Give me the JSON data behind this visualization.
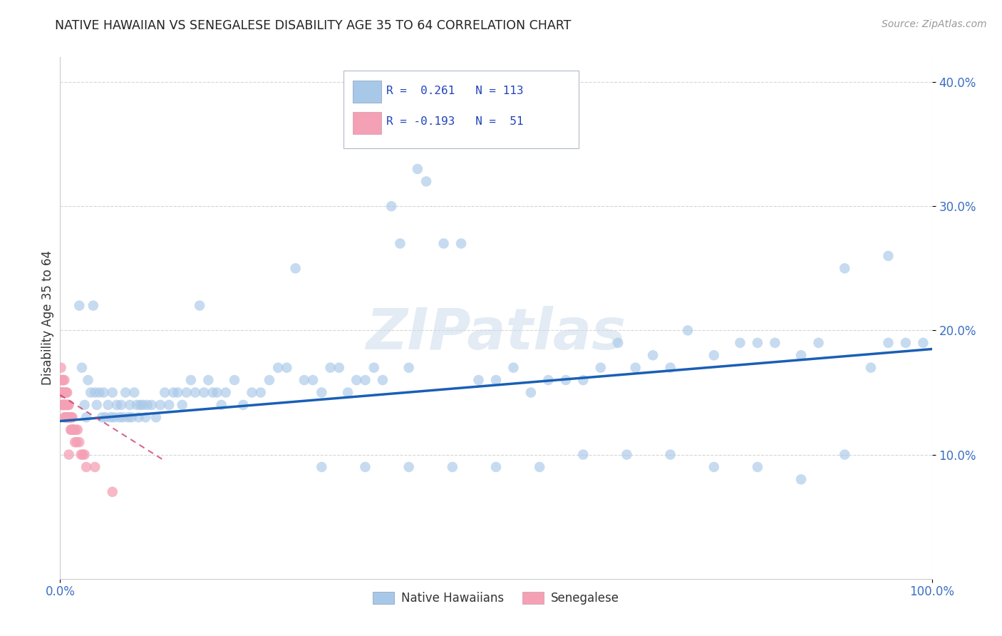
{
  "title": "NATIVE HAWAIIAN VS SENEGALESE DISABILITY AGE 35 TO 64 CORRELATION CHART",
  "source": "Source: ZipAtlas.com",
  "ylabel": "Disability Age 35 to 64",
  "xlim": [
    0,
    1.0
  ],
  "ylim": [
    0,
    0.42
  ],
  "blue_color": "#a8c8e8",
  "pink_color": "#f4a0b5",
  "line_blue": "#1a5fb4",
  "line_pink": "#cc3366",
  "background_color": "#ffffff",
  "grid_color": "#cccccc",
  "watermark": "ZIPatlas",
  "blue_line_x": [
    0.0,
    1.0
  ],
  "blue_line_y": [
    0.127,
    0.185
  ],
  "pink_line_x": [
    0.0,
    0.12
  ],
  "pink_line_y": [
    0.148,
    0.095
  ],
  "nh_x": [
    0.022,
    0.025,
    0.028,
    0.03,
    0.032,
    0.035,
    0.038,
    0.04,
    0.042,
    0.045,
    0.048,
    0.05,
    0.052,
    0.055,
    0.058,
    0.06,
    0.062,
    0.065,
    0.068,
    0.07,
    0.072,
    0.075,
    0.078,
    0.08,
    0.082,
    0.085,
    0.088,
    0.09,
    0.092,
    0.095,
    0.098,
    0.1,
    0.105,
    0.11,
    0.115,
    0.12,
    0.125,
    0.13,
    0.135,
    0.14,
    0.145,
    0.15,
    0.155,
    0.16,
    0.165,
    0.17,
    0.175,
    0.18,
    0.185,
    0.19,
    0.2,
    0.21,
    0.22,
    0.23,
    0.24,
    0.25,
    0.26,
    0.27,
    0.28,
    0.29,
    0.3,
    0.31,
    0.32,
    0.33,
    0.34,
    0.35,
    0.36,
    0.37,
    0.38,
    0.39,
    0.4,
    0.41,
    0.42,
    0.44,
    0.46,
    0.48,
    0.5,
    0.52,
    0.54,
    0.56,
    0.58,
    0.6,
    0.62,
    0.64,
    0.66,
    0.68,
    0.7,
    0.72,
    0.75,
    0.78,
    0.8,
    0.82,
    0.85,
    0.87,
    0.9,
    0.93,
    0.95,
    0.3,
    0.35,
    0.4,
    0.45,
    0.5,
    0.55,
    0.6,
    0.65,
    0.7,
    0.75,
    0.8,
    0.85,
    0.9,
    0.95,
    0.97,
    0.99
  ],
  "nh_y": [
    0.22,
    0.17,
    0.14,
    0.13,
    0.16,
    0.15,
    0.22,
    0.15,
    0.14,
    0.15,
    0.13,
    0.15,
    0.13,
    0.14,
    0.13,
    0.15,
    0.13,
    0.14,
    0.13,
    0.14,
    0.13,
    0.15,
    0.13,
    0.14,
    0.13,
    0.15,
    0.14,
    0.13,
    0.14,
    0.14,
    0.13,
    0.14,
    0.14,
    0.13,
    0.14,
    0.15,
    0.14,
    0.15,
    0.15,
    0.14,
    0.15,
    0.16,
    0.15,
    0.22,
    0.15,
    0.16,
    0.15,
    0.15,
    0.14,
    0.15,
    0.16,
    0.14,
    0.15,
    0.15,
    0.16,
    0.17,
    0.17,
    0.25,
    0.16,
    0.16,
    0.15,
    0.17,
    0.17,
    0.15,
    0.16,
    0.16,
    0.17,
    0.16,
    0.3,
    0.27,
    0.17,
    0.33,
    0.32,
    0.27,
    0.27,
    0.16,
    0.16,
    0.17,
    0.15,
    0.16,
    0.16,
    0.16,
    0.17,
    0.19,
    0.17,
    0.18,
    0.17,
    0.2,
    0.18,
    0.19,
    0.19,
    0.19,
    0.18,
    0.19,
    0.25,
    0.17,
    0.19,
    0.09,
    0.09,
    0.09,
    0.09,
    0.09,
    0.09,
    0.1,
    0.1,
    0.1,
    0.09,
    0.09,
    0.08,
    0.1,
    0.26,
    0.19,
    0.19
  ],
  "sn_x": [
    0.001,
    0.001,
    0.002,
    0.002,
    0.002,
    0.003,
    0.003,
    0.003,
    0.003,
    0.004,
    0.004,
    0.004,
    0.005,
    0.005,
    0.005,
    0.006,
    0.006,
    0.006,
    0.007,
    0.007,
    0.007,
    0.008,
    0.008,
    0.008,
    0.009,
    0.009,
    0.01,
    0.01,
    0.01,
    0.011,
    0.011,
    0.012,
    0.012,
    0.013,
    0.013,
    0.014,
    0.014,
    0.015,
    0.015,
    0.016,
    0.017,
    0.018,
    0.019,
    0.02,
    0.022,
    0.024,
    0.026,
    0.028,
    0.03,
    0.04,
    0.06
  ],
  "sn_y": [
    0.17,
    0.15,
    0.16,
    0.14,
    0.15,
    0.16,
    0.15,
    0.14,
    0.16,
    0.15,
    0.14,
    0.14,
    0.16,
    0.14,
    0.13,
    0.15,
    0.14,
    0.13,
    0.15,
    0.14,
    0.13,
    0.15,
    0.14,
    0.13,
    0.14,
    0.13,
    0.14,
    0.13,
    0.1,
    0.13,
    0.13,
    0.13,
    0.12,
    0.13,
    0.12,
    0.13,
    0.12,
    0.12,
    0.12,
    0.12,
    0.11,
    0.12,
    0.11,
    0.12,
    0.11,
    0.1,
    0.1,
    0.1,
    0.09,
    0.09,
    0.07
  ]
}
